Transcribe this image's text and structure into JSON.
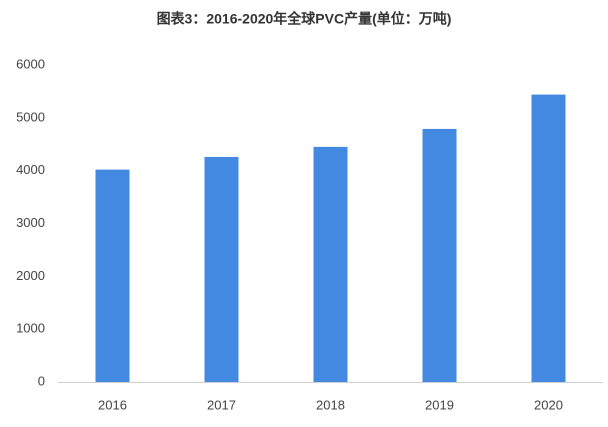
{
  "chart_data": {
    "type": "bar",
    "title": "图表3：2016-2020年全球PVC产量(单位：万吨)",
    "categories": [
      "2016",
      "2017",
      "2018",
      "2019",
      "2020"
    ],
    "values": [
      4020,
      4260,
      4450,
      4790,
      5440
    ],
    "color": "#4389e1",
    "ylim": [
      0,
      6000
    ],
    "yticks": [
      0,
      1000,
      2000,
      3000,
      4000,
      5000,
      6000
    ],
    "grid": false
  }
}
